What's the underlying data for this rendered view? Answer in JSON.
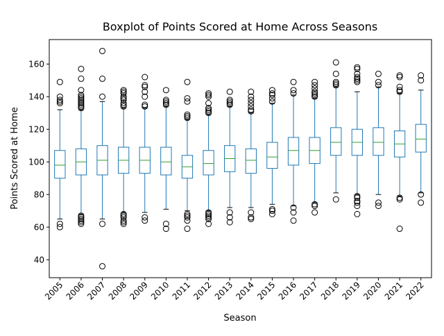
{
  "chart_data": {
    "type": "boxplot",
    "title": "Boxplot of Points Scored at Home Across Seasons",
    "xlabel": "Season",
    "ylabel": "Points Scored at Home",
    "ylim": [
      29,
      175
    ],
    "yticks": [
      40,
      60,
      80,
      100,
      120,
      140,
      160
    ],
    "grid": false,
    "colors": {
      "box": "#1f77b4",
      "median": "#2ca02c",
      "outlier": "#000000"
    },
    "categories": [
      "2005",
      "2006",
      "2007",
      "2008",
      "2009",
      "2010",
      "2011",
      "2012",
      "2013",
      "2014",
      "2015",
      "2016",
      "2017",
      "2018",
      "2019",
      "2020",
      "2021",
      "2022"
    ],
    "boxes": [
      {
        "season": "2005",
        "whisker_low": 65,
        "q1": 90,
        "median": 98,
        "q3": 107,
        "whisker_high": 132,
        "outliers": [
          60,
          62,
          136,
          137,
          138,
          140,
          149
        ]
      },
      {
        "season": "2006",
        "whisker_low": 68,
        "q1": 92,
        "median": 100,
        "q3": 108,
        "whisker_high": 132,
        "outliers": [
          62,
          63,
          64,
          65,
          66,
          67,
          133,
          134,
          135,
          136,
          137,
          138,
          139,
          140,
          141,
          144,
          151,
          157
        ]
      },
      {
        "season": "2007",
        "whisker_low": 65,
        "q1": 92,
        "median": 101,
        "q3": 110,
        "whisker_high": 137,
        "outliers": [
          36,
          62,
          140,
          151,
          168
        ]
      },
      {
        "season": "2008",
        "whisker_low": 69,
        "q1": 93,
        "median": 101,
        "q3": 109,
        "whisker_high": 133,
        "outliers": [
          62,
          63,
          64,
          66,
          67,
          68,
          134,
          135,
          136,
          138,
          139,
          140,
          142,
          143,
          144
        ]
      },
      {
        "season": "2009",
        "whisker_low": 69,
        "q1": 93,
        "median": 101,
        "q3": 109,
        "whisker_high": 133,
        "outliers": [
          64,
          66,
          134,
          135,
          140,
          143,
          146,
          147,
          152
        ]
      },
      {
        "season": "2010",
        "whisker_low": 71,
        "q1": 92,
        "median": 100,
        "q3": 109,
        "whisker_high": 134,
        "outliers": [
          59,
          62,
          135,
          136,
          137,
          138,
          144
        ]
      },
      {
        "season": "2011",
        "whisker_low": 70,
        "q1": 90,
        "median": 97,
        "q3": 104,
        "whisker_high": 126,
        "outliers": [
          59,
          64,
          66,
          67,
          68,
          127,
          128,
          129,
          137,
          139,
          149
        ]
      },
      {
        "season": "2012",
        "whisker_low": 70,
        "q1": 92,
        "median": 99,
        "q3": 107,
        "whisker_high": 129,
        "outliers": [
          62,
          65,
          66,
          67,
          68,
          69,
          130,
          131,
          132,
          133,
          136,
          140,
          141,
          142
        ]
      },
      {
        "season": "2013",
        "whisker_low": 72,
        "q1": 94,
        "median": 102,
        "q3": 110,
        "whisker_high": 134,
        "outliers": [
          63,
          66,
          69,
          135,
          136,
          137,
          138,
          143
        ]
      },
      {
        "season": "2014",
        "whisker_low": 72,
        "q1": 93,
        "median": 101,
        "q3": 108,
        "whisker_high": 130,
        "outliers": [
          65,
          66,
          69,
          131,
          132,
          134,
          136,
          138,
          140,
          143
        ]
      },
      {
        "season": "2015",
        "whisker_low": 74,
        "q1": 96,
        "median": 103,
        "q3": 112,
        "whisker_high": 136,
        "outliers": [
          68,
          70,
          71,
          137,
          139,
          141,
          142,
          144
        ]
      },
      {
        "season": "2016",
        "whisker_low": 73,
        "q1": 98,
        "median": 107,
        "q3": 115,
        "whisker_high": 141,
        "outliers": [
          64,
          69,
          72,
          142,
          144,
          149
        ]
      },
      {
        "season": "2017",
        "whisker_low": 75,
        "q1": 99,
        "median": 107,
        "q3": 115,
        "whisker_high": 139,
        "outliers": [
          69,
          73,
          74,
          140,
          141,
          142,
          143,
          145,
          147,
          149
        ]
      },
      {
        "season": "2018",
        "whisker_low": 81,
        "q1": 104,
        "median": 112,
        "q3": 121,
        "whisker_high": 146,
        "outliers": [
          77,
          147,
          148,
          149,
          154,
          161
        ]
      },
      {
        "season": "2019",
        "whisker_low": 80,
        "q1": 104,
        "median": 112,
        "q3": 120,
        "whisker_high": 143,
        "outliers": [
          68,
          73,
          75,
          76,
          78,
          79,
          149,
          150,
          151,
          152,
          154,
          157,
          158
        ]
      },
      {
        "season": "2020",
        "whisker_low": 80,
        "q1": 104,
        "median": 112,
        "q3": 121,
        "whisker_high": 146,
        "outliers": [
          73,
          75,
          147,
          149,
          154
        ]
      },
      {
        "season": "2021",
        "whisker_low": 79,
        "q1": 103,
        "median": 111,
        "q3": 119,
        "whisker_high": 142,
        "outliers": [
          59,
          77,
          78,
          143,
          144,
          146,
          152,
          153
        ]
      },
      {
        "season": "2022",
        "whisker_low": 81,
        "q1": 106,
        "median": 114,
        "q3": 123,
        "whisker_high": 144,
        "outliers": [
          75,
          80,
          150,
          153
        ]
      }
    ]
  }
}
